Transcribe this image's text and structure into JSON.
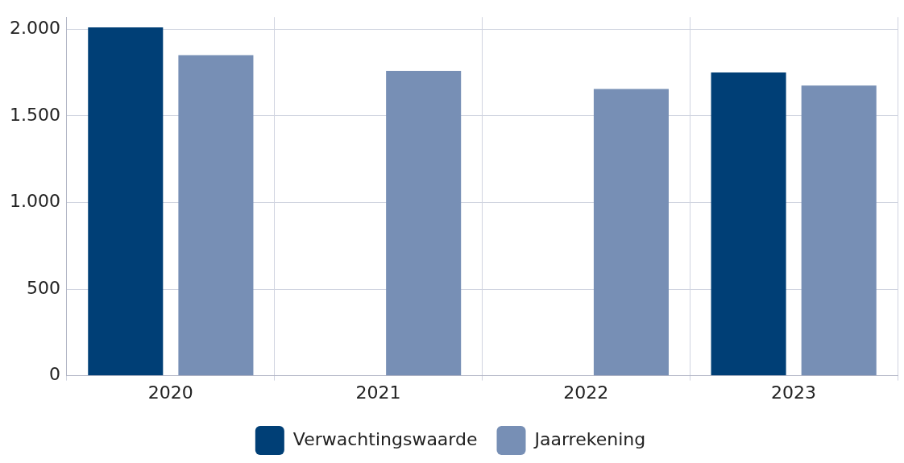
{
  "chart_data": {
    "type": "bar",
    "categories": [
      "2020",
      "2021",
      "2022",
      "2023"
    ],
    "series": [
      {
        "name": "Verwachtingswaarde",
        "color": "#003f76",
        "values": [
          2010,
          null,
          null,
          1750
        ]
      },
      {
        "name": "Jaarrekening",
        "color": "#778fb5",
        "values": [
          1850,
          1760,
          1655,
          1675
        ]
      }
    ],
    "ylim": [
      0,
      2070
    ],
    "yticks": [
      0,
      500,
      {
        "value": 1000,
        "label": "1.000"
      },
      {
        "value": 1500,
        "label": "1.500"
      },
      {
        "value": 2000,
        "label": "2.000"
      }
    ],
    "grid": true,
    "legend": "bottom"
  }
}
